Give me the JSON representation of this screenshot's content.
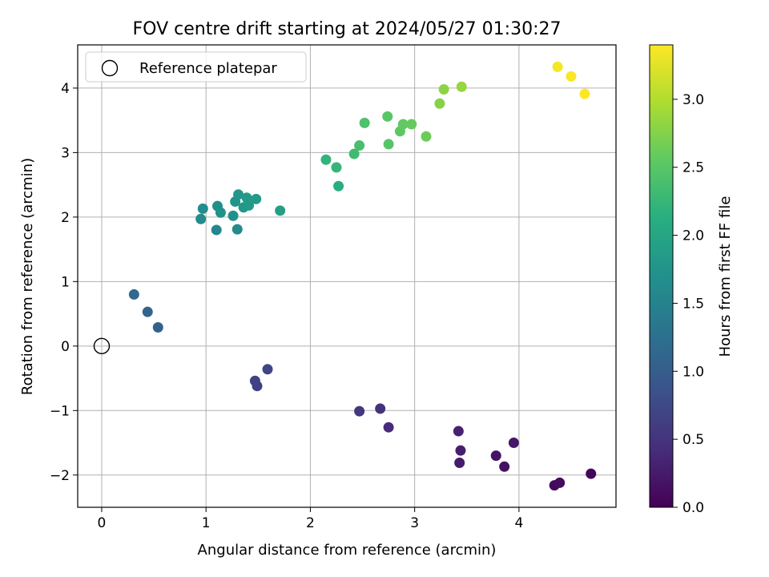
{
  "chart_data": {
    "type": "scatter",
    "title": "FOV centre drift starting at 2024/05/27 01:30:27",
    "xlabel": "Angular distance from reference (arcmin)",
    "ylabel": "Rotation from reference (arcmin)",
    "xlim": [
      -0.23,
      4.93
    ],
    "ylim": [
      -2.5,
      4.67
    ],
    "xticks": [
      0,
      1,
      2,
      3,
      4
    ],
    "yticks": [
      -2,
      -1,
      0,
      1,
      2,
      3,
      4
    ],
    "xtick_labels": [
      "0",
      "1",
      "2",
      "3",
      "4"
    ],
    "ytick_labels": [
      "−2",
      "−1",
      "0",
      "1",
      "2",
      "3",
      "4"
    ],
    "grid": true,
    "legend": {
      "placement": "top-left",
      "entries": [
        {
          "label": "Reference platepar",
          "marker": "open-circle",
          "color": "#000000"
        }
      ]
    },
    "reference_point": {
      "x": 0,
      "y": 0
    },
    "colorbar": {
      "label": "Hours from first FF file",
      "colormap": "viridis",
      "range": [
        0,
        3.4
      ],
      "ticks": [
        0,
        0.5,
        1,
        1.5,
        2,
        2.5,
        3
      ],
      "tick_labels": [
        "0.0",
        "0.5",
        "1.0",
        "1.5",
        "2.0",
        "2.5",
        "3.0"
      ]
    },
    "points": [
      {
        "x": 4.69,
        "y": -1.98,
        "c": 0.05
      },
      {
        "x": 4.34,
        "y": -2.16,
        "c": 0.08
      },
      {
        "x": 4.39,
        "y": -2.12,
        "c": 0.1
      },
      {
        "x": 3.86,
        "y": -1.87,
        "c": 0.15
      },
      {
        "x": 3.78,
        "y": -1.7,
        "c": 0.18
      },
      {
        "x": 3.95,
        "y": -1.5,
        "c": 0.21
      },
      {
        "x": 3.43,
        "y": -1.81,
        "c": 0.26
      },
      {
        "x": 3.44,
        "y": -1.62,
        "c": 0.29
      },
      {
        "x": 3.42,
        "y": -1.32,
        "c": 0.32
      },
      {
        "x": 2.75,
        "y": -1.26,
        "c": 0.42
      },
      {
        "x": 2.67,
        "y": -0.97,
        "c": 0.48
      },
      {
        "x": 2.47,
        "y": -1.01,
        "c": 0.54
      },
      {
        "x": 1.49,
        "y": -0.62,
        "c": 0.64
      },
      {
        "x": 1.47,
        "y": -0.54,
        "c": 0.67
      },
      {
        "x": 1.59,
        "y": -0.36,
        "c": 0.7
      },
      {
        "x": 0.54,
        "y": 0.29,
        "c": 1.05
      },
      {
        "x": 0.44,
        "y": 0.53,
        "c": 1.1
      },
      {
        "x": 0.31,
        "y": 0.8,
        "c": 1.14
      },
      {
        "x": 1.1,
        "y": 1.8,
        "c": 1.56
      },
      {
        "x": 1.3,
        "y": 1.81,
        "c": 1.6
      },
      {
        "x": 0.95,
        "y": 1.97,
        "c": 1.62
      },
      {
        "x": 0.97,
        "y": 2.13,
        "c": 1.65
      },
      {
        "x": 1.11,
        "y": 2.17,
        "c": 1.67
      },
      {
        "x": 1.14,
        "y": 2.07,
        "c": 1.7
      },
      {
        "x": 1.26,
        "y": 2.02,
        "c": 1.72
      },
      {
        "x": 1.28,
        "y": 2.24,
        "c": 1.75
      },
      {
        "x": 1.31,
        "y": 2.35,
        "c": 1.77
      },
      {
        "x": 1.36,
        "y": 2.15,
        "c": 1.79
      },
      {
        "x": 1.39,
        "y": 2.3,
        "c": 1.81
      },
      {
        "x": 1.41,
        "y": 2.18,
        "c": 1.83
      },
      {
        "x": 1.48,
        "y": 2.28,
        "c": 1.85
      },
      {
        "x": 1.71,
        "y": 2.1,
        "c": 1.9
      },
      {
        "x": 2.27,
        "y": 2.48,
        "c": 2.12
      },
      {
        "x": 2.15,
        "y": 2.89,
        "c": 2.2
      },
      {
        "x": 2.25,
        "y": 2.77,
        "c": 2.24
      },
      {
        "x": 2.42,
        "y": 2.98,
        "c": 2.32
      },
      {
        "x": 2.47,
        "y": 3.11,
        "c": 2.38
      },
      {
        "x": 2.52,
        "y": 3.46,
        "c": 2.42
      },
      {
        "x": 2.75,
        "y": 3.13,
        "c": 2.48
      },
      {
        "x": 2.74,
        "y": 3.56,
        "c": 2.5
      },
      {
        "x": 2.86,
        "y": 3.33,
        "c": 2.54
      },
      {
        "x": 2.89,
        "y": 3.44,
        "c": 2.56
      },
      {
        "x": 2.97,
        "y": 3.44,
        "c": 2.58
      },
      {
        "x": 3.11,
        "y": 3.25,
        "c": 2.62
      },
      {
        "x": 3.24,
        "y": 3.76,
        "c": 2.76
      },
      {
        "x": 3.28,
        "y": 3.98,
        "c": 2.8
      },
      {
        "x": 3.45,
        "y": 4.02,
        "c": 2.85
      },
      {
        "x": 4.37,
        "y": 4.33,
        "c": 3.36
      },
      {
        "x": 4.5,
        "y": 4.18,
        "c": 3.38
      },
      {
        "x": 4.63,
        "y": 3.91,
        "c": 3.4
      }
    ]
  }
}
